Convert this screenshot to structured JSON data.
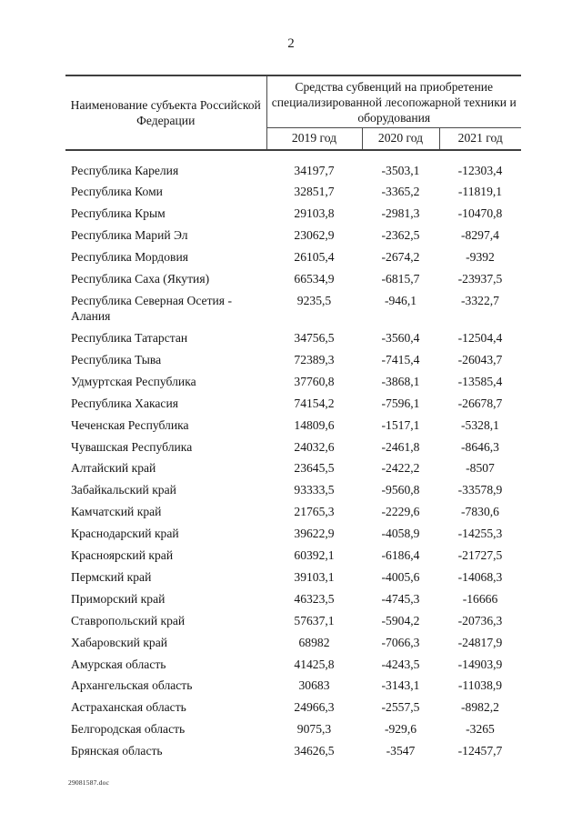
{
  "page": {
    "number": "2",
    "footer_filename": "29081587.doc"
  },
  "table": {
    "header": {
      "subject_column": "Наименование субъекта Российской Федерации",
      "subvention_group": "Средства субвенций на приобретение специализированной лесопожарной техники и оборудования",
      "year_columns": [
        "2019 год",
        "2020 год",
        "2021 год"
      ]
    },
    "rows": [
      {
        "name": "Республика Карелия",
        "y2019": "34197,7",
        "y2020": "-3503,1",
        "y2021": "-12303,4"
      },
      {
        "name": "Республика Коми",
        "y2019": "32851,7",
        "y2020": "-3365,2",
        "y2021": "-11819,1"
      },
      {
        "name": "Республика Крым",
        "y2019": "29103,8",
        "y2020": "-2981,3",
        "y2021": "-10470,8"
      },
      {
        "name": "Республика Марий Эл",
        "y2019": "23062,9",
        "y2020": "-2362,5",
        "y2021": "-8297,4"
      },
      {
        "name": "Республика Мордовия",
        "y2019": "26105,4",
        "y2020": "-2674,2",
        "y2021": "-9392"
      },
      {
        "name": "Республика Саха (Якутия)",
        "y2019": "66534,9",
        "y2020": "-6815,7",
        "y2021": "-23937,5"
      },
      {
        "name": "Республика Северная Осетия - Алания",
        "y2019": "9235,5",
        "y2020": "-946,1",
        "y2021": "-3322,7"
      },
      {
        "name": "Республика Татарстан",
        "y2019": "34756,5",
        "y2020": "-3560,4",
        "y2021": "-12504,4"
      },
      {
        "name": "Республика Тыва",
        "y2019": "72389,3",
        "y2020": "-7415,4",
        "y2021": "-26043,7"
      },
      {
        "name": "Удмуртская Республика",
        "y2019": "37760,8",
        "y2020": "-3868,1",
        "y2021": "-13585,4"
      },
      {
        "name": "Республика Хакасия",
        "y2019": "74154,2",
        "y2020": "-7596,1",
        "y2021": "-26678,7"
      },
      {
        "name": "Чеченская Республика",
        "y2019": "14809,6",
        "y2020": "-1517,1",
        "y2021": "-5328,1"
      },
      {
        "name": "Чувашская Республика",
        "y2019": "24032,6",
        "y2020": "-2461,8",
        "y2021": "-8646,3"
      },
      {
        "name": "Алтайский край",
        "y2019": "23645,5",
        "y2020": "-2422,2",
        "y2021": "-8507"
      },
      {
        "name": "Забайкальский край",
        "y2019": "93333,5",
        "y2020": "-9560,8",
        "y2021": "-33578,9"
      },
      {
        "name": "Камчатский край",
        "y2019": "21765,3",
        "y2020": "-2229,6",
        "y2021": "-7830,6"
      },
      {
        "name": "Краснодарский край",
        "y2019": "39622,9",
        "y2020": "-4058,9",
        "y2021": "-14255,3"
      },
      {
        "name": "Красноярский край",
        "y2019": "60392,1",
        "y2020": "-6186,4",
        "y2021": "-21727,5"
      },
      {
        "name": "Пермский край",
        "y2019": "39103,1",
        "y2020": "-4005,6",
        "y2021": "-14068,3"
      },
      {
        "name": "Приморский край",
        "y2019": "46323,5",
        "y2020": "-4745,3",
        "y2021": "-16666"
      },
      {
        "name": "Ставропольский край",
        "y2019": "57637,1",
        "y2020": "-5904,2",
        "y2021": "-20736,3"
      },
      {
        "name": "Хабаровский край",
        "y2019": "68982",
        "y2020": "-7066,3",
        "y2021": "-24817,9"
      },
      {
        "name": "Амурская область",
        "y2019": "41425,8",
        "y2020": "-4243,5",
        "y2021": "-14903,9"
      },
      {
        "name": "Архангельская область",
        "y2019": "30683",
        "y2020": "-3143,1",
        "y2021": "-11038,9"
      },
      {
        "name": "Астраханская область",
        "y2019": "24966,3",
        "y2020": "-2557,5",
        "y2021": "-8982,2"
      },
      {
        "name": "Белгородская область",
        "y2019": "9075,3",
        "y2020": "-929,6",
        "y2021": "-3265"
      },
      {
        "name": "Брянская область",
        "y2019": "34626,5",
        "y2020": "-3547",
        "y2021": "-12457,7"
      }
    ]
  }
}
